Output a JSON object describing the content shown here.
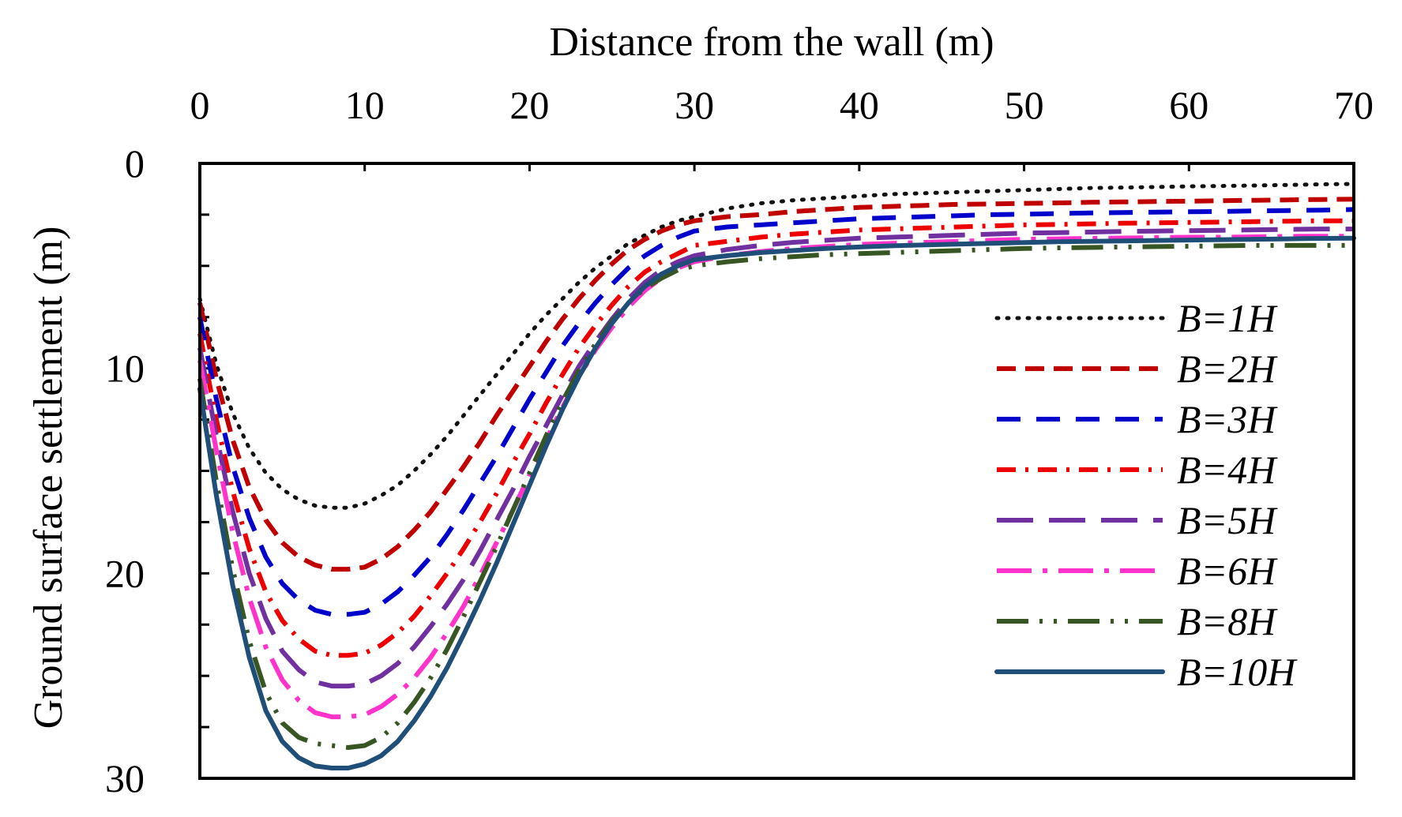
{
  "chart_data": {
    "type": "line",
    "title": "",
    "xlabel": "Distance from the wall (m)",
    "ylabel": "Ground surface settlement (m)",
    "x_axis_position": "top",
    "y_axis_inverted": true,
    "xlim": [
      0,
      70
    ],
    "ylim": [
      0,
      30
    ],
    "xticks": [
      0,
      10,
      20,
      30,
      40,
      50,
      60,
      70
    ],
    "yticks_labeled": [
      0,
      10,
      20,
      30
    ],
    "grid": false,
    "legend_position": "right",
    "x": [
      0,
      1,
      2,
      3,
      4,
      5,
      6,
      7,
      8,
      9,
      10,
      11,
      12,
      13,
      14,
      15,
      16,
      17,
      18,
      19,
      20,
      21,
      22,
      23,
      24,
      25,
      26,
      27,
      28,
      29,
      30,
      32,
      34,
      36,
      38,
      40,
      42,
      44,
      46,
      48,
      50,
      52,
      54,
      56,
      58,
      60,
      62,
      64,
      66,
      68,
      70
    ],
    "series": [
      {
        "name": "B=1H",
        "label": "B=1H",
        "color": "#111111",
        "style": "dotted",
        "values": [
          6.6,
          9.8,
          12.2,
          13.9,
          15.1,
          15.9,
          16.4,
          16.7,
          16.8,
          16.8,
          16.6,
          16.2,
          15.7,
          15.0,
          14.2,
          13.3,
          12.3,
          11.3,
          10.3,
          9.3,
          8.3,
          7.4,
          6.6,
          5.8,
          5.1,
          4.5,
          3.9,
          3.5,
          3.1,
          2.8,
          2.6,
          2.2,
          1.95,
          1.8,
          1.7,
          1.6,
          1.5,
          1.45,
          1.4,
          1.35,
          1.3,
          1.25,
          1.2,
          1.18,
          1.15,
          1.12,
          1.1,
          1.08,
          1.05,
          1.02,
          1.0
        ]
      },
      {
        "name": "B=2H",
        "label": "B=2H",
        "color": "#c00000",
        "style": "dashed",
        "values": [
          6.8,
          10.5,
          13.5,
          15.8,
          17.4,
          18.5,
          19.2,
          19.6,
          19.8,
          19.8,
          19.7,
          19.3,
          18.7,
          17.9,
          17.0,
          15.9,
          14.8,
          13.6,
          12.3,
          11.1,
          9.9,
          8.7,
          7.6,
          6.6,
          5.7,
          4.9,
          4.2,
          3.7,
          3.3,
          3.0,
          2.8,
          2.6,
          2.5,
          2.35,
          2.25,
          2.15,
          2.1,
          2.05,
          2.0,
          1.98,
          1.95,
          1.93,
          1.9,
          1.88,
          1.86,
          1.84,
          1.82,
          1.8,
          1.78,
          1.76,
          1.75
        ]
      },
      {
        "name": "B=3H",
        "label": "B=3H",
        "color": "#0000cc",
        "style": "dash",
        "values": [
          7.5,
          11.5,
          14.8,
          17.3,
          19.2,
          20.5,
          21.3,
          21.8,
          22.0,
          22.0,
          21.9,
          21.5,
          20.9,
          20.1,
          19.2,
          18.1,
          16.9,
          15.6,
          14.3,
          12.9,
          11.5,
          10.2,
          8.9,
          7.8,
          6.8,
          5.9,
          5.1,
          4.5,
          4.0,
          3.6,
          3.3,
          3.1,
          3.0,
          2.9,
          2.8,
          2.7,
          2.65,
          2.6,
          2.55,
          2.5,
          2.48,
          2.45,
          2.42,
          2.4,
          2.38,
          2.36,
          2.34,
          2.32,
          2.3,
          2.28,
          2.25
        ]
      },
      {
        "name": "B=4H",
        "label": "B=4H",
        "color": "#ee0000",
        "style": "dashdot",
        "values": [
          8.3,
          12.5,
          16.0,
          18.8,
          20.9,
          22.3,
          23.2,
          23.8,
          24.0,
          24.0,
          23.9,
          23.5,
          22.9,
          22.1,
          21.1,
          20.0,
          18.8,
          17.5,
          16.1,
          14.6,
          13.2,
          11.7,
          10.3,
          9.0,
          7.9,
          6.9,
          6.0,
          5.3,
          4.8,
          4.4,
          4.0,
          3.8,
          3.6,
          3.45,
          3.35,
          3.25,
          3.2,
          3.15,
          3.1,
          3.05,
          3.0,
          2.98,
          2.95,
          2.92,
          2.9,
          2.88,
          2.86,
          2.84,
          2.82,
          2.8,
          2.8
        ]
      },
      {
        "name": "B=5H",
        "label": "B=5H",
        "color": "#7030a0",
        "style": "longdash",
        "values": [
          9.0,
          13.3,
          17.0,
          20.0,
          22.2,
          23.8,
          24.7,
          25.3,
          25.5,
          25.5,
          25.4,
          25.0,
          24.4,
          23.6,
          22.6,
          21.5,
          20.3,
          18.9,
          17.4,
          15.9,
          14.3,
          12.8,
          11.3,
          9.9,
          8.7,
          7.6,
          6.6,
          5.8,
          5.2,
          4.8,
          4.5,
          4.2,
          4.0,
          3.85,
          3.75,
          3.65,
          3.6,
          3.55,
          3.5,
          3.45,
          3.4,
          3.38,
          3.35,
          3.32,
          3.3,
          3.28,
          3.26,
          3.24,
          3.22,
          3.2,
          3.2
        ]
      },
      {
        "name": "B=6H",
        "label": "B=6H",
        "color": "#ff33cc",
        "style": "longdashdot",
        "values": [
          9.6,
          14.0,
          18.0,
          21.2,
          23.6,
          25.2,
          26.2,
          26.8,
          27.0,
          27.0,
          26.9,
          26.5,
          25.9,
          25.1,
          24.1,
          22.9,
          21.6,
          20.1,
          18.5,
          16.9,
          15.2,
          13.5,
          11.9,
          10.4,
          9.1,
          8.0,
          7.0,
          6.2,
          5.6,
          5.1,
          4.8,
          4.5,
          4.3,
          4.15,
          4.05,
          3.95,
          3.9,
          3.85,
          3.8,
          3.75,
          3.7,
          3.68,
          3.66,
          3.64,
          3.62,
          3.6,
          3.6,
          3.58,
          3.56,
          3.55,
          3.55
        ]
      },
      {
        "name": "B=8H",
        "label": "B=8H",
        "color": "#375623",
        "style": "dashdotlong",
        "values": [
          10.5,
          15.5,
          19.8,
          23.3,
          25.8,
          27.3,
          28.0,
          28.3,
          28.4,
          28.5,
          28.4,
          28.0,
          27.3,
          26.3,
          25.1,
          23.7,
          22.1,
          20.4,
          18.7,
          16.9,
          15.1,
          13.3,
          11.6,
          10.1,
          8.8,
          7.7,
          6.8,
          6.1,
          5.6,
          5.2,
          5.0,
          4.8,
          4.65,
          4.55,
          4.45,
          4.4,
          4.35,
          4.3,
          4.25,
          4.2,
          4.15,
          4.12,
          4.1,
          4.08,
          4.06,
          4.04,
          4.02,
          4.0,
          4.0,
          4.0,
          4.0
        ]
      },
      {
        "name": "B=10H",
        "label": "B=10H",
        "color": "#1f4e79",
        "style": "solid",
        "values": [
          11.0,
          16.2,
          20.6,
          24.1,
          26.7,
          28.2,
          29.0,
          29.4,
          29.5,
          29.5,
          29.3,
          28.9,
          28.2,
          27.2,
          26.0,
          24.6,
          23.0,
          21.3,
          19.5,
          17.6,
          15.7,
          13.8,
          12.0,
          10.4,
          9.0,
          7.8,
          6.8,
          6.0,
          5.4,
          5.0,
          4.7,
          4.5,
          4.35,
          4.25,
          4.15,
          4.08,
          4.02,
          3.98,
          3.94,
          3.9,
          3.86,
          3.82,
          3.8,
          3.78,
          3.76,
          3.74,
          3.72,
          3.7,
          3.68,
          3.66,
          3.65
        ]
      }
    ]
  }
}
